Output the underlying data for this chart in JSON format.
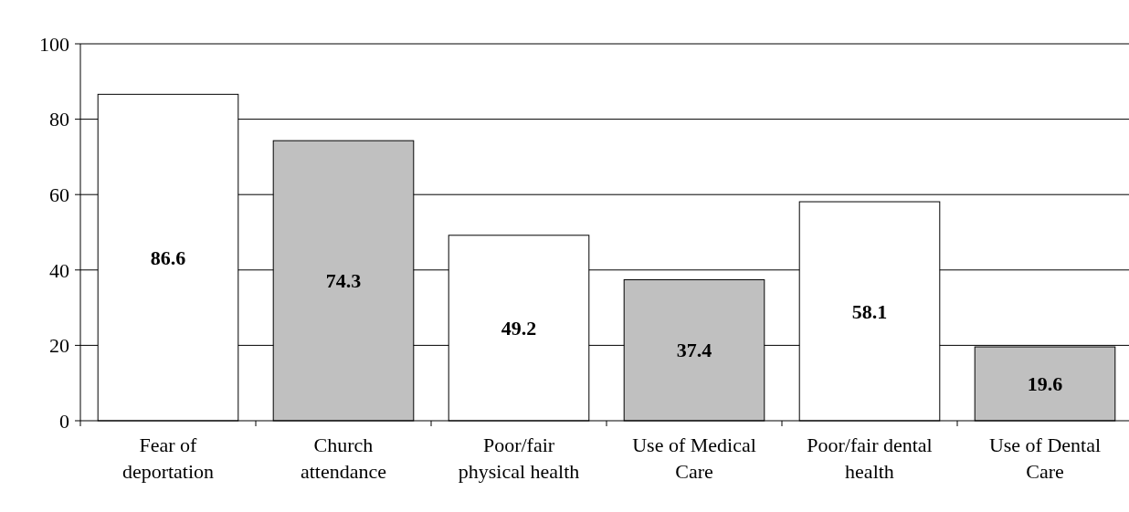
{
  "chart_data": {
    "type": "bar",
    "categories": [
      "Fear of deportation",
      "Church attendance",
      "Poor/fair physical health",
      "Use of Medical Care",
      "Poor/fair dental health",
      "Use of Dental Care"
    ],
    "values": [
      86.6,
      74.3,
      49.2,
      37.4,
      58.1,
      19.6
    ],
    "colors": [
      "#ffffff",
      "#c0c0c0",
      "#ffffff",
      "#c0c0c0",
      "#ffffff",
      "#c0c0c0"
    ],
    "ylim": [
      0,
      100
    ],
    "yticks": [
      0,
      20,
      40,
      60,
      80,
      100
    ],
    "grid": "y",
    "data_labels": true
  }
}
